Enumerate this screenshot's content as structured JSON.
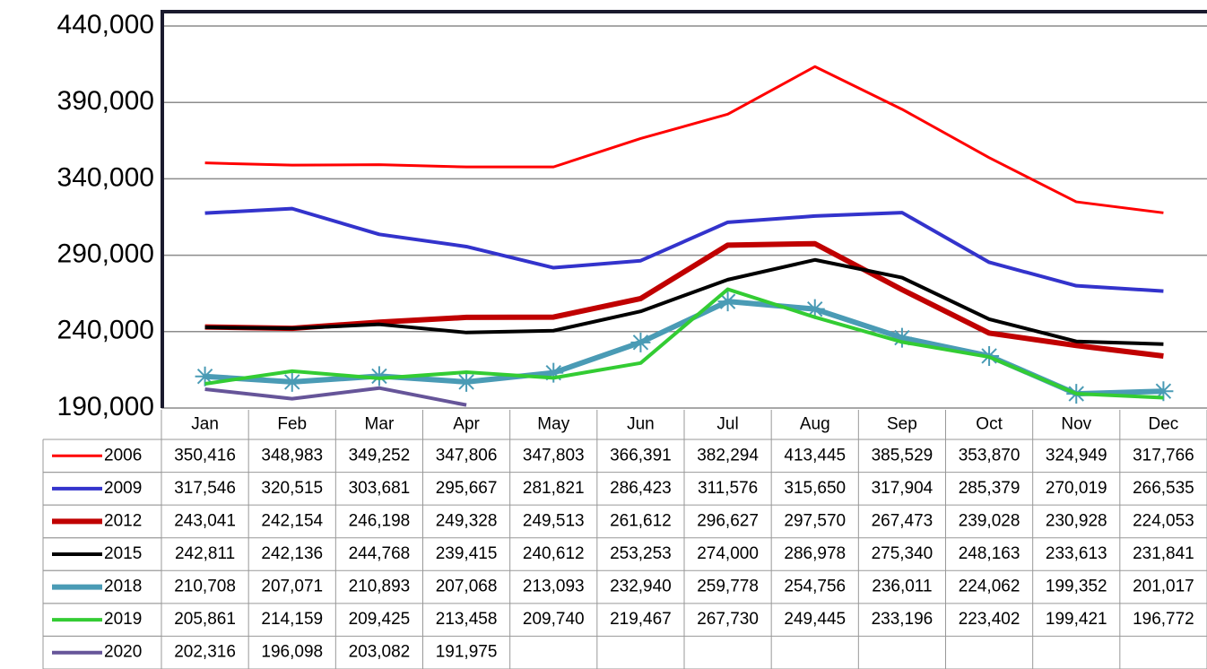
{
  "chart_data": {
    "type": "line",
    "categories": [
      "Jan",
      "Feb",
      "Mar",
      "Apr",
      "May",
      "Jun",
      "Jul",
      "Aug",
      "Sep",
      "Oct",
      "Nov",
      "Dec"
    ],
    "ylim": [
      190000,
      450000
    ],
    "yticks": [
      {
        "value": 190000,
        "label": "190,000"
      },
      {
        "value": 240000,
        "label": "240,000"
      },
      {
        "value": 290000,
        "label": "290,000"
      },
      {
        "value": 340000,
        "label": "340,000"
      },
      {
        "value": 390000,
        "label": "390,000"
      },
      {
        "value": 440000,
        "label": "440,000"
      }
    ],
    "grid": true,
    "series": [
      {
        "name": "2006",
        "color": "#ff0000",
        "width": 3,
        "values": [
          350416,
          348983,
          349252,
          347806,
          347803,
          366391,
          382294,
          413445,
          385529,
          353870,
          324949,
          317766
        ],
        "value_labels": [
          "350,416",
          "348,983",
          "349,252",
          "347,806",
          "347,803",
          "366,391",
          "382,294",
          "413,445",
          "385,529",
          "353,870",
          "324,949",
          "317,766"
        ]
      },
      {
        "name": "2009",
        "color": "#3333cc",
        "width": 4,
        "values": [
          317546,
          320515,
          303681,
          295667,
          281821,
          286423,
          311576,
          315650,
          317904,
          285379,
          270019,
          266535
        ],
        "value_labels": [
          "317,546",
          "320,515",
          "303,681",
          "295,667",
          "281,821",
          "286,423",
          "311,576",
          "315,650",
          "317,904",
          "285,379",
          "270,019",
          "266,535"
        ]
      },
      {
        "name": "2012",
        "color": "#c00000",
        "width": 6,
        "values": [
          243041,
          242154,
          246198,
          249328,
          249513,
          261612,
          296627,
          297570,
          267473,
          239028,
          230928,
          224053
        ],
        "value_labels": [
          "243,041",
          "242,154",
          "246,198",
          "249,328",
          "249,513",
          "261,612",
          "296,627",
          "297,570",
          "267,473",
          "239,028",
          "230,928",
          "224,053"
        ]
      },
      {
        "name": "2015",
        "color": "#000000",
        "width": 4,
        "values": [
          242811,
          242136,
          244768,
          239415,
          240612,
          253253,
          274000,
          286978,
          275340,
          248163,
          233613,
          231841
        ],
        "value_labels": [
          "242,811",
          "242,136",
          "244,768",
          "239,415",
          "240,612",
          "253,253",
          "274,000",
          "286,978",
          "275,340",
          "248,163",
          "233,613",
          "231,841"
        ]
      },
      {
        "name": "2018",
        "color": "#4a9bb5",
        "width": 6,
        "marker": "star",
        "values": [
          210708,
          207071,
          210893,
          207068,
          213093,
          232940,
          259778,
          254756,
          236011,
          224062,
          199352,
          201017
        ],
        "value_labels": [
          "210,708",
          "207,071",
          "210,893",
          "207,068",
          "213,093",
          "232,940",
          "259,778",
          "254,756",
          "236,011",
          "224,062",
          "199,352",
          "201,017"
        ]
      },
      {
        "name": "2019",
        "color": "#33cc33",
        "width": 4,
        "values": [
          205861,
          214159,
          209425,
          213458,
          209740,
          219467,
          267730,
          249445,
          233196,
          223402,
          199421,
          196772
        ],
        "value_labels": [
          "205,861",
          "214,159",
          "209,425",
          "213,458",
          "209,740",
          "219,467",
          "267,730",
          "249,445",
          "233,196",
          "223,402",
          "199,421",
          "196,772"
        ]
      },
      {
        "name": "2020",
        "color": "#665599",
        "width": 4,
        "values": [
          202316,
          196098,
          203082,
          191975,
          null,
          null,
          null,
          null,
          null,
          null,
          null,
          null
        ],
        "value_labels": [
          "202,316",
          "196,098",
          "203,082",
          "191,975",
          null,
          null,
          null,
          null,
          null,
          null,
          null,
          null
        ]
      }
    ]
  }
}
